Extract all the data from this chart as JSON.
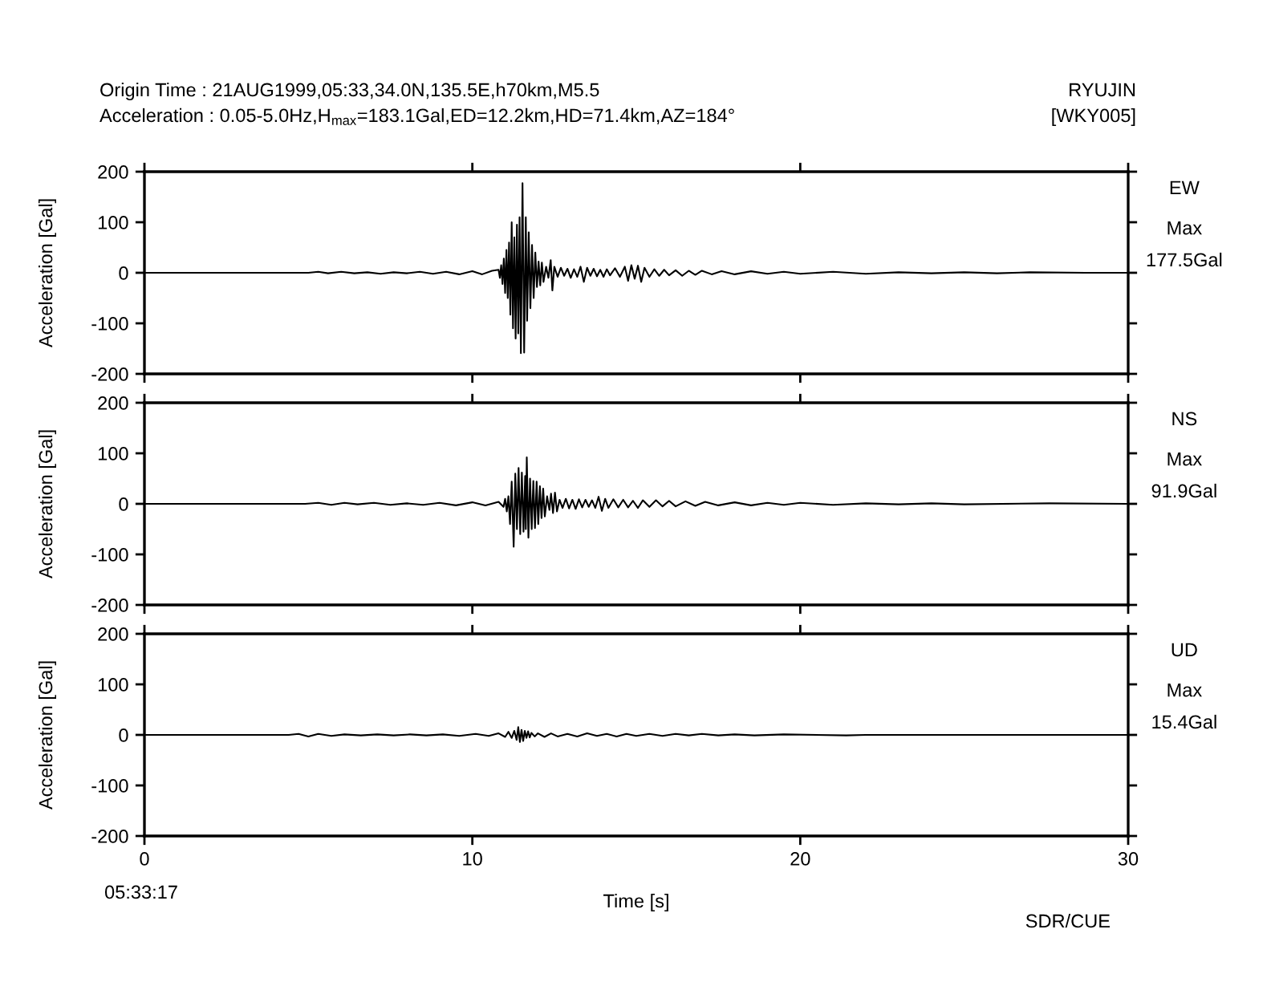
{
  "chart_data": [
    {
      "type": "line",
      "title": "Origin Time : 21AUG1999,05:33,34.0N,135.5E,h70km,M5.5",
      "subtitle": "Acceleration : 0.05-5.0Hz,H$_{max}$=183.1Gal,ED=12.2km,HD=71.4km,AZ=184°",
      "ylabel": "Acceleration [Gal]",
      "annotations": [
        "Max",
        "177.5Gal",
        "RYUJIN",
        "[WKY005]"
      ],
      "tick_labels": "y",
      "xlim": [
        0,
        30
      ],
      "xticks": [
        0,
        10,
        20,
        30
      ],
      "ylim": [
        -200,
        200
      ],
      "yticks": [
        -200,
        -100,
        0,
        100,
        200
      ],
      "x": [
        0,
        5.0,
        5.3,
        5.6,
        6.0,
        6.4,
        6.8,
        7.2,
        7.6,
        8.0,
        8.4,
        8.8,
        9.2,
        9.6,
        10.0,
        10.3,
        10.6,
        10.8,
        10.84,
        10.88,
        10.92,
        10.96,
        11.0,
        11.04,
        11.08,
        11.12,
        11.16,
        11.2,
        11.24,
        11.28,
        11.32,
        11.36,
        11.4,
        11.44,
        11.48,
        11.53,
        11.58,
        11.63,
        11.67,
        11.72,
        11.77,
        11.82,
        11.87,
        11.92,
        11.97,
        12.02,
        12.07,
        12.12,
        12.17,
        12.25,
        12.32,
        12.39,
        12.44,
        12.5,
        12.6,
        12.7,
        12.8,
        12.9,
        13.0,
        13.1,
        13.2,
        13.3,
        13.4,
        13.5,
        13.6,
        13.7,
        13.8,
        13.9,
        14.0,
        14.1,
        14.2,
        14.35,
        14.5,
        14.65,
        14.75,
        14.85,
        14.95,
        15.05,
        15.15,
        15.25,
        15.4,
        15.55,
        15.7,
        15.85,
        16.0,
        16.2,
        16.4,
        16.6,
        16.8,
        17.0,
        17.3,
        17.6,
        18.0,
        18.5,
        19.0,
        19.5,
        20.0,
        21.0,
        22.0,
        23.0,
        24.0,
        25.0,
        26.0,
        27.0,
        28.7,
        30
      ],
      "series": [
        {
          "name": "EW",
          "color": "#000000",
          "values": [
            0,
            0,
            2,
            -1,
            2,
            -1,
            1,
            -2,
            1,
            -1,
            2,
            -2,
            2,
            -3,
            3,
            -3,
            4,
            6,
            -10,
            15,
            -22,
            28,
            -40,
            45,
            -50,
            60,
            -83,
            100,
            -110,
            70,
            -130,
            95,
            -120,
            110,
            -159,
            177.5,
            -158,
            110,
            -95,
            80,
            -70,
            55,
            -50,
            40,
            -28,
            22,
            -25,
            20,
            -18,
            12,
            -10,
            25,
            -35,
            12,
            -8,
            10,
            -6,
            8,
            -10,
            7,
            -8,
            12,
            -18,
            10,
            -6,
            8,
            -7,
            6,
            -8,
            7,
            -5,
            9,
            -8,
            12,
            -16,
            15,
            -12,
            14,
            -18,
            10,
            -8,
            7,
            -6,
            6,
            -5,
            5,
            -6,
            4,
            -4,
            4,
            -3,
            3,
            -3,
            3,
            -2,
            2,
            -2,
            2,
            -2,
            1,
            -1,
            1,
            -1,
            1,
            0,
            0
          ]
        }
      ]
    },
    {
      "type": "line",
      "ylabel": "Acceleration [Gal]",
      "annotations": [
        "Max",
        "91.9Gal"
      ],
      "tick_labels": "y",
      "xlim": [
        0,
        30
      ],
      "xticks": [
        0,
        10,
        20,
        30
      ],
      "ylim": [
        -200,
        200
      ],
      "yticks": [
        -200,
        -100,
        0,
        100,
        200
      ],
      "x": [
        0,
        4.9,
        5.3,
        5.7,
        6.1,
        6.5,
        7.0,
        7.5,
        8.0,
        8.5,
        9.0,
        9.5,
        10.0,
        10.4,
        10.8,
        10.95,
        11.0,
        11.05,
        11.1,
        11.15,
        11.2,
        11.26,
        11.31,
        11.36,
        11.41,
        11.46,
        11.51,
        11.56,
        11.61,
        11.63,
        11.66,
        11.71,
        11.76,
        11.81,
        11.86,
        11.91,
        11.96,
        12.01,
        12.06,
        12.11,
        12.16,
        12.21,
        12.28,
        12.35,
        12.4,
        12.46,
        12.52,
        12.58,
        12.66,
        12.75,
        12.85,
        12.95,
        13.05,
        13.15,
        13.25,
        13.35,
        13.45,
        13.55,
        13.65,
        13.75,
        13.85,
        13.95,
        14.05,
        14.15,
        14.3,
        14.45,
        14.6,
        14.75,
        14.9,
        15.05,
        15.2,
        15.4,
        15.6,
        15.8,
        16.0,
        16.2,
        16.5,
        16.8,
        17.1,
        17.5,
        18.0,
        18.5,
        19.0,
        19.5,
        20.0,
        21.0,
        22.0,
        23.0,
        24.0,
        25.0,
        27.6,
        30
      ],
      "series": [
        {
          "name": "NS",
          "color": "#000000",
          "values": [
            0,
            0,
            2,
            -2,
            2,
            -1,
            2,
            -2,
            1,
            -2,
            2,
            -3,
            3,
            -3,
            4,
            -6,
            10,
            -15,
            15,
            -40,
            44,
            -85,
            60,
            -50,
            71,
            -60,
            62,
            -55,
            55,
            -50,
            91.9,
            -67,
            50,
            -50,
            45,
            -48,
            44,
            -40,
            35,
            -28,
            30,
            -25,
            15,
            -12,
            20,
            -18,
            22,
            -15,
            8,
            -8,
            10,
            -9,
            8,
            -10,
            9,
            -7,
            8,
            -6,
            7,
            -8,
            14,
            -14,
            10,
            -8,
            9,
            -7,
            8,
            -7,
            6,
            -8,
            7,
            -6,
            7,
            -5,
            6,
            -5,
            5,
            -4,
            4,
            -3,
            3,
            -3,
            2,
            -2,
            2,
            -2,
            1,
            -1,
            1,
            -1,
            1,
            0
          ]
        }
      ]
    },
    {
      "type": "line",
      "xlabel": "Time [s]",
      "ylabel": "Acceleration [Gal]",
      "annotations": [
        "Max",
        "15.4Gal",
        "05:33:17",
        "SDR/CUE"
      ],
      "xlim": [
        0,
        30
      ],
      "xticks": [
        0,
        10,
        20,
        30
      ],
      "ylim": [
        -200,
        200
      ],
      "yticks": [
        -200,
        -100,
        0,
        100,
        200
      ],
      "x": [
        0,
        4.4,
        4.7,
        5.0,
        5.3,
        5.7,
        6.1,
        6.6,
        7.1,
        7.6,
        8.1,
        8.6,
        9.1,
        9.6,
        10.1,
        10.5,
        10.8,
        11.0,
        11.1,
        11.2,
        11.28,
        11.35,
        11.4,
        11.45,
        11.5,
        11.55,
        11.6,
        11.65,
        11.7,
        11.75,
        11.8,
        11.9,
        12.0,
        12.2,
        12.4,
        12.6,
        12.9,
        13.2,
        13.5,
        13.8,
        14.1,
        14.4,
        14.7,
        15.0,
        15.4,
        15.8,
        16.2,
        16.6,
        17.0,
        17.5,
        18.0,
        18.6,
        19.5,
        21.4,
        22,
        30
      ],
      "series": [
        {
          "name": "UD",
          "color": "#000000",
          "values": [
            0,
            0,
            2,
            -3,
            2,
            -2,
            1,
            -1,
            1,
            -1,
            1,
            -1,
            1,
            -2,
            2,
            -2,
            3,
            -4,
            6,
            -6,
            8,
            -10,
            15.4,
            -14,
            10,
            -12,
            8,
            -6,
            7,
            -5,
            4,
            -3,
            3,
            -4,
            3,
            -3,
            2,
            -3,
            3,
            -2,
            2,
            -3,
            2,
            -2,
            2,
            -2,
            2,
            -1,
            2,
            -1,
            1,
            -1,
            1,
            -1,
            0,
            0
          ]
        }
      ]
    }
  ]
}
